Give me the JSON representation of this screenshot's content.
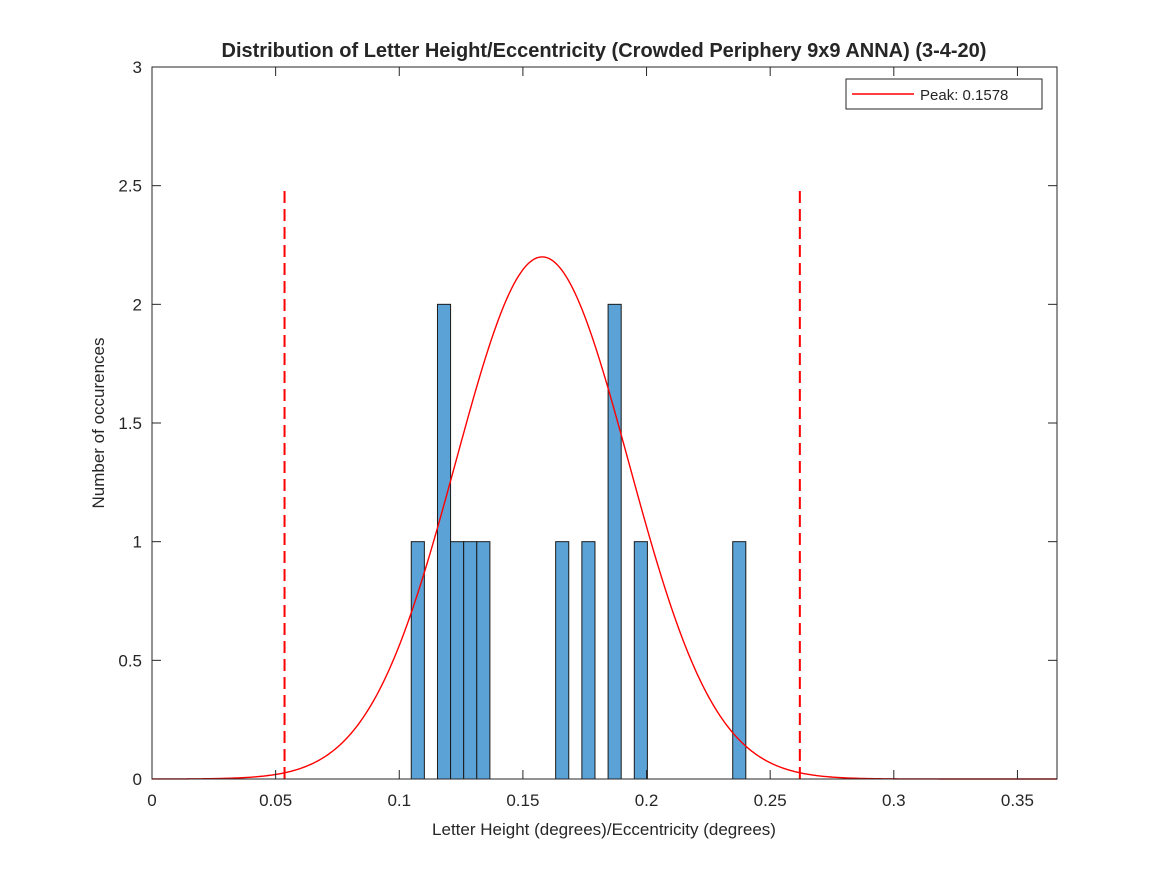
{
  "chart_data": {
    "type": "bar",
    "title": "Distribution of Letter Height/Eccentricity (Crowded Periphery 9x9 ANNA) (3-4-20)",
    "xlabel": "Letter Height (degrees)/Eccentricity (degrees)",
    "ylabel": "Number of occurences",
    "xlim": [
      0,
      0.366
    ],
    "ylim": [
      0,
      3
    ],
    "x_ticks": [
      "0",
      "0.05",
      "0.1",
      "0.15",
      "0.2",
      "0.25",
      "0.3",
      "0.35"
    ],
    "x_tick_values": [
      0,
      0.05,
      0.1,
      0.15,
      0.2,
      0.25,
      0.3,
      0.35
    ],
    "y_ticks": [
      "0",
      "0.5",
      "1",
      "1.5",
      "2",
      "2.5",
      "3"
    ],
    "y_tick_values": [
      0,
      0.5,
      1,
      1.5,
      2,
      2.5,
      3
    ],
    "grid": false,
    "bin_width": 0.0053,
    "bins": [
      {
        "x": 0.1075,
        "value": 1
      },
      {
        "x": 0.1181,
        "value": 2
      },
      {
        "x": 0.1234,
        "value": 1
      },
      {
        "x": 0.1287,
        "value": 1
      },
      {
        "x": 0.134,
        "value": 1
      },
      {
        "x": 0.1659,
        "value": 1
      },
      {
        "x": 0.1765,
        "value": 1
      },
      {
        "x": 0.1871,
        "value": 2
      },
      {
        "x": 0.1977,
        "value": 1
      },
      {
        "x": 0.2375,
        "value": 1
      }
    ],
    "bar_color": "#5ba3d7",
    "fit": {
      "type": "normal",
      "peak_x": 0.1578,
      "peak_y": 2.2,
      "sigma": 0.035,
      "color": "#ff0000",
      "legend": "Peak: 0.1578"
    },
    "vlines": [
      {
        "x": 0.0536,
        "ymax": 2.5,
        "style": "dashed",
        "color": "#ff0000"
      },
      {
        "x": 0.262,
        "ymax": 2.5,
        "style": "dashed",
        "color": "#ff0000"
      }
    ],
    "legend_position": "top-right"
  }
}
